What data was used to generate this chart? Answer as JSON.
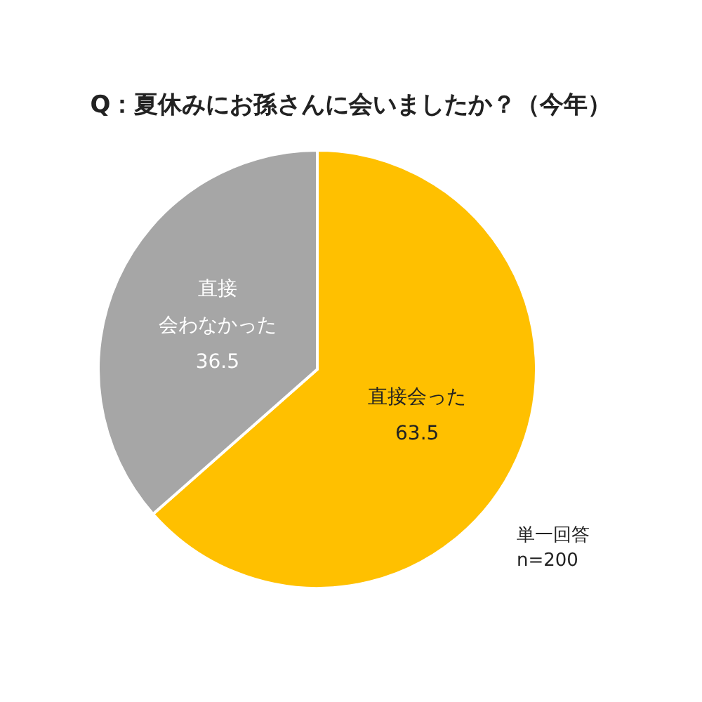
{
  "chart_data": {
    "type": "pie",
    "title": "Q：夏休みにお孫さんに会いましたか？（今年）",
    "categories": [
      "直接会った",
      "直接会わなかった"
    ],
    "values": [
      63.5,
      36.5
    ],
    "colors": [
      "#ffc000",
      "#a6a6a6"
    ],
    "data_labels": true,
    "annotations": [
      "単一回答",
      "n=200"
    ]
  }
}
